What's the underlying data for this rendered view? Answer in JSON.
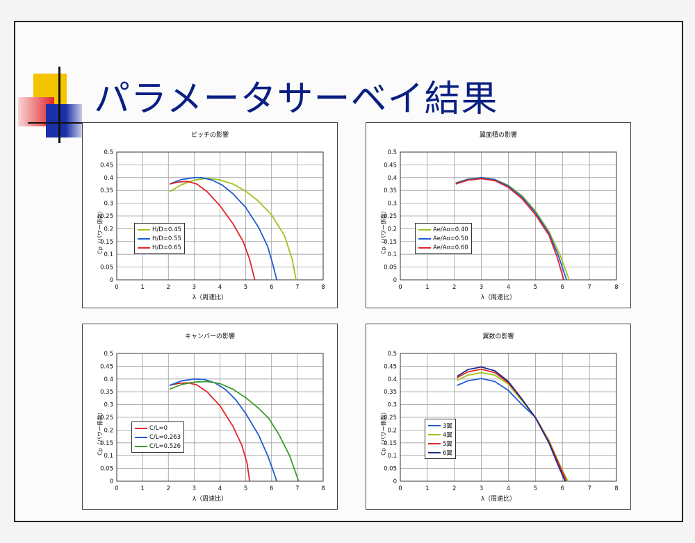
{
  "slide": {
    "title": "パラメータサーベイ結果"
  },
  "colors": {
    "title": "#0a1f82",
    "deco_yellow": "#f5c400",
    "deco_red": "#e0252a",
    "deco_blue": "#1a2fa8"
  },
  "chart_data": [
    {
      "type": "line",
      "title": "ピッチの影響",
      "xlabel": "λ（周速比）",
      "ylabel": "Cp（パワー係数）",
      "xlim": [
        0,
        8
      ],
      "ylim": [
        0,
        0.5
      ],
      "xticks": [
        "0",
        "1",
        "2",
        "3",
        "4",
        "5",
        "6",
        "7",
        "8"
      ],
      "yticks": [
        "0",
        "0.05",
        "0.1",
        "0.15",
        "0.2",
        "0.25",
        "0.3",
        "0.35",
        "0.4",
        "0.45",
        "0.5"
      ],
      "grid": true,
      "legend_position": "left",
      "series": [
        {
          "name": "H/D=0.45",
          "color": "#9ac31c",
          "points": [
            [
              2.05,
              0.345
            ],
            [
              2.5,
              0.372
            ],
            [
              3,
              0.39
            ],
            [
              3.5,
              0.397
            ],
            [
              4,
              0.391
            ],
            [
              4.5,
              0.375
            ],
            [
              5,
              0.347
            ],
            [
              5.5,
              0.307
            ],
            [
              6,
              0.254
            ],
            [
              6.5,
              0.173
            ],
            [
              6.8,
              0.08
            ],
            [
              6.95,
              0
            ]
          ]
        },
        {
          "name": "H/D=0.55",
          "color": "#1f5ad1",
          "points": [
            [
              2.05,
              0.375
            ],
            [
              2.5,
              0.392
            ],
            [
              3,
              0.4
            ],
            [
              3.3,
              0.4
            ],
            [
              3.7,
              0.39
            ],
            [
              4.1,
              0.37
            ],
            [
              4.5,
              0.337
            ],
            [
              5,
              0.283
            ],
            [
              5.5,
              0.205
            ],
            [
              5.85,
              0.13
            ],
            [
              6.05,
              0.06
            ],
            [
              6.2,
              0
            ]
          ]
        },
        {
          "name": "H/D=0.65",
          "color": "#e0252a",
          "points": [
            [
              2.05,
              0.375
            ],
            [
              2.4,
              0.383
            ],
            [
              2.75,
              0.385
            ],
            [
              3.1,
              0.375
            ],
            [
              3.5,
              0.345
            ],
            [
              4,
              0.29
            ],
            [
              4.5,
              0.22
            ],
            [
              4.9,
              0.15
            ],
            [
              5.15,
              0.08
            ],
            [
              5.35,
              0
            ]
          ]
        }
      ]
    },
    {
      "type": "line",
      "title": "翼面積の影響",
      "xlabel": "λ（周速比）",
      "ylabel": "Cp（パワー係数）",
      "xlim": [
        0,
        8
      ],
      "ylim": [
        0,
        0.5
      ],
      "xticks": [
        "0",
        "1",
        "2",
        "3",
        "4",
        "5",
        "6",
        "7",
        "8"
      ],
      "yticks": [
        "0",
        "0.05",
        "0.1",
        "0.15",
        "0.2",
        "0.25",
        "0.3",
        "0.35",
        "0.4",
        "0.45",
        "0.5"
      ],
      "grid": true,
      "legend_position": "left",
      "series": [
        {
          "name": "Ae/Ao=0.40",
          "color": "#9ac31c",
          "points": [
            [
              2.05,
              0.38
            ],
            [
              2.5,
              0.394
            ],
            [
              3,
              0.4
            ],
            [
              3.5,
              0.393
            ],
            [
              4,
              0.37
            ],
            [
              4.5,
              0.33
            ],
            [
              5,
              0.27
            ],
            [
              5.5,
              0.19
            ],
            [
              5.9,
              0.1
            ],
            [
              6.25,
              0
            ]
          ]
        },
        {
          "name": "Ae/Ao=0.50",
          "color": "#1f5ad1",
          "points": [
            [
              2.05,
              0.378
            ],
            [
              2.5,
              0.393
            ],
            [
              3,
              0.4
            ],
            [
              3.5,
              0.392
            ],
            [
              4,
              0.367
            ],
            [
              4.5,
              0.325
            ],
            [
              5,
              0.263
            ],
            [
              5.5,
              0.183
            ],
            [
              5.85,
              0.095
            ],
            [
              6.15,
              0
            ]
          ]
        },
        {
          "name": "Ae/Ao=0.60",
          "color": "#e0252a",
          "points": [
            [
              2.05,
              0.375
            ],
            [
              2.5,
              0.39
            ],
            [
              3,
              0.396
            ],
            [
              3.5,
              0.388
            ],
            [
              4,
              0.362
            ],
            [
              4.5,
              0.318
            ],
            [
              5,
              0.255
            ],
            [
              5.5,
              0.175
            ],
            [
              5.8,
              0.09
            ],
            [
              6.05,
              0
            ]
          ]
        }
      ]
    },
    {
      "type": "line",
      "title": "キャンバーの影響",
      "xlabel": "λ（周速比）",
      "ylabel": "Cp（パワー係数）",
      "xlim": [
        0,
        8
      ],
      "ylim": [
        0,
        0.5
      ],
      "xticks": [
        "0",
        "1",
        "2",
        "3",
        "4",
        "5",
        "6",
        "7",
        "8"
      ],
      "yticks": [
        "0",
        "0.05",
        "0.1",
        "0.15",
        "0.2",
        "0.25",
        "0.3",
        "0.35",
        "0.4",
        "0.45",
        "0.5"
      ],
      "grid": true,
      "legend_position": "left",
      "series": [
        {
          "name": "C/L=0",
          "color": "#e0252a",
          "points": [
            [
              2.05,
              0.375
            ],
            [
              2.4,
              0.383
            ],
            [
              2.75,
              0.385
            ],
            [
              3.1,
              0.377
            ],
            [
              3.5,
              0.35
            ],
            [
              4,
              0.295
            ],
            [
              4.5,
              0.215
            ],
            [
              4.85,
              0.14
            ],
            [
              5.05,
              0.07
            ],
            [
              5.15,
              0
            ]
          ]
        },
        {
          "name": "C/L=0.263",
          "color": "#1f5ad1",
          "points": [
            [
              2.05,
              0.375
            ],
            [
              2.5,
              0.392
            ],
            [
              3,
              0.4
            ],
            [
              3.4,
              0.398
            ],
            [
              3.8,
              0.385
            ],
            [
              4.2,
              0.36
            ],
            [
              4.6,
              0.32
            ],
            [
              5,
              0.265
            ],
            [
              5.5,
              0.18
            ],
            [
              5.85,
              0.1
            ],
            [
              6.1,
              0.03
            ],
            [
              6.2,
              0
            ]
          ]
        },
        {
          "name": "C/L=0.526",
          "color": "#3a9a2c",
          "points": [
            [
              2.05,
              0.36
            ],
            [
              2.5,
              0.378
            ],
            [
              3,
              0.388
            ],
            [
              3.5,
              0.39
            ],
            [
              4,
              0.382
            ],
            [
              4.5,
              0.36
            ],
            [
              5,
              0.327
            ],
            [
              5.5,
              0.285
            ],
            [
              5.9,
              0.245
            ],
            [
              6.3,
              0.18
            ],
            [
              6.7,
              0.1
            ],
            [
              7.05,
              0
            ]
          ]
        }
      ]
    },
    {
      "type": "line",
      "title": "翼数の影響",
      "xlabel": "λ（周速比）",
      "ylabel": "Cp（パワー係数）",
      "xlim": [
        0,
        8
      ],
      "ylim": [
        0,
        0.5
      ],
      "xticks": [
        "0",
        "1",
        "2",
        "3",
        "4",
        "5",
        "6",
        "7",
        "8"
      ],
      "yticks": [
        "0",
        "0.05",
        "0.1",
        "0.15",
        "0.2",
        "0.25",
        "0.3",
        "0.35",
        "0.4",
        "0.45",
        "0.5"
      ],
      "grid": true,
      "legend_position": "left",
      "series": [
        {
          "name": "3翼",
          "color": "#1f5ad1",
          "points": [
            [
              2.1,
              0.375
            ],
            [
              2.5,
              0.393
            ],
            [
              3,
              0.402
            ],
            [
              3.5,
              0.39
            ],
            [
              4,
              0.355
            ],
            [
              4.5,
              0.3
            ],
            [
              5,
              0.25
            ],
            [
              5.5,
              0.16
            ],
            [
              5.9,
              0.06
            ],
            [
              6.15,
              0
            ]
          ]
        },
        {
          "name": "4翼",
          "color": "#9ac31c",
          "points": [
            [
              2.1,
              0.395
            ],
            [
              2.5,
              0.415
            ],
            [
              3,
              0.425
            ],
            [
              3.5,
              0.415
            ],
            [
              4,
              0.38
            ],
            [
              4.5,
              0.315
            ],
            [
              5,
              0.25
            ],
            [
              5.5,
              0.16
            ],
            [
              5.9,
              0.065
            ],
            [
              6.2,
              0
            ]
          ]
        },
        {
          "name": "5翼",
          "color": "#e0252a",
          "points": [
            [
              2.1,
              0.405
            ],
            [
              2.5,
              0.428
            ],
            [
              3,
              0.438
            ],
            [
              3.5,
              0.425
            ],
            [
              4,
              0.385
            ],
            [
              4.5,
              0.32
            ],
            [
              5,
              0.25
            ],
            [
              5.5,
              0.155
            ],
            [
              5.9,
              0.06
            ],
            [
              6.15,
              0
            ]
          ]
        },
        {
          "name": "6翼",
          "color": "#1a2a8a",
          "points": [
            [
              2.1,
              0.41
            ],
            [
              2.5,
              0.437
            ],
            [
              3,
              0.447
            ],
            [
              3.5,
              0.432
            ],
            [
              4,
              0.39
            ],
            [
              4.5,
              0.322
            ],
            [
              5,
              0.248
            ],
            [
              5.5,
              0.15
            ],
            [
              5.85,
              0.06
            ],
            [
              6.1,
              0
            ]
          ]
        }
      ]
    }
  ]
}
